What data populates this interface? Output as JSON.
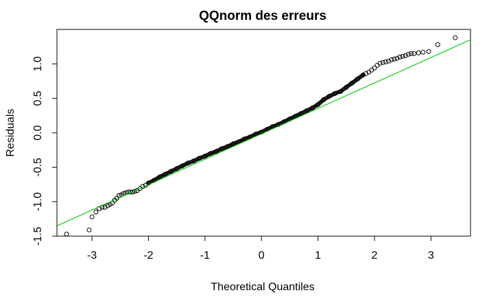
{
  "chart_data": {
    "type": "scatter",
    "title": "QQnorm des erreurs",
    "xlabel": "Theoretical Quantiles",
    "ylabel": "Residuals",
    "xlim": [
      -3.62,
      3.7
    ],
    "ylim": [
      -1.5,
      1.5
    ],
    "x_ticks": [
      -3,
      -2,
      -1,
      0,
      1,
      2,
      3
    ],
    "x_tick_labels": [
      "-3",
      "-2",
      "-1",
      "0",
      "1",
      "2",
      "3"
    ],
    "y_ticks": [
      -1.5,
      -1.0,
      -0.5,
      0.0,
      0.5,
      1.0
    ],
    "y_tick_labels": [
      "-1.5",
      "-1.0",
      "-0.5",
      "0.0",
      "0.5",
      "1.0"
    ],
    "grid": false,
    "reference_line": {
      "color": "#00cc00",
      "points": [
        [
          -3.62,
          -1.35
        ],
        [
          3.7,
          1.35
        ]
      ]
    },
    "series": [
      {
        "marker": "open-circle",
        "color": "#000000",
        "x": [
          -3.45,
          -3.05,
          -3.0,
          -2.93,
          -2.87,
          -2.82,
          -2.77,
          -2.72,
          -2.68,
          -2.64,
          -2.6,
          -2.56,
          -2.52,
          -2.48,
          -2.44,
          -2.4,
          -2.36,
          -2.32,
          -2.28,
          -2.24,
          -2.2,
          -2.15,
          -2.1,
          -2.05,
          -2.0,
          -1.9,
          -1.8,
          -1.7,
          -1.6,
          -1.5,
          -1.4,
          -1.3,
          -1.2,
          -1.1,
          -1.0,
          -0.9,
          -0.8,
          -0.7,
          -0.6,
          -0.5,
          -0.4,
          -0.3,
          -0.2,
          -0.1,
          0.0,
          0.1,
          0.2,
          0.3,
          0.4,
          0.5,
          0.6,
          0.7,
          0.8,
          0.9,
          1.0,
          1.1,
          1.2,
          1.3,
          1.4,
          1.5,
          1.6,
          1.7,
          1.8,
          1.85,
          1.9,
          1.95,
          2.0,
          2.05,
          2.1,
          2.15,
          2.2,
          2.25,
          2.3,
          2.35,
          2.4,
          2.45,
          2.5,
          2.55,
          2.6,
          2.65,
          2.7,
          2.78,
          2.86,
          2.96,
          3.12,
          3.43
        ],
        "y": [
          -1.47,
          -1.41,
          -1.22,
          -1.15,
          -1.1,
          -1.08,
          -1.08,
          -1.06,
          -1.04,
          -1.02,
          -0.98,
          -0.95,
          -0.91,
          -0.9,
          -0.88,
          -0.87,
          -0.86,
          -0.86,
          -0.86,
          -0.85,
          -0.84,
          -0.81,
          -0.78,
          -0.76,
          -0.73,
          -0.69,
          -0.64,
          -0.6,
          -0.56,
          -0.52,
          -0.48,
          -0.44,
          -0.41,
          -0.37,
          -0.34,
          -0.3,
          -0.27,
          -0.23,
          -0.2,
          -0.16,
          -0.13,
          -0.09,
          -0.06,
          -0.02,
          0.01,
          0.05,
          0.09,
          0.12,
          0.16,
          0.2,
          0.24,
          0.28,
          0.32,
          0.36,
          0.41,
          0.48,
          0.53,
          0.57,
          0.6,
          0.66,
          0.72,
          0.78,
          0.84,
          0.86,
          0.88,
          0.91,
          0.94,
          0.98,
          1.01,
          1.02,
          1.03,
          1.04,
          1.06,
          1.07,
          1.08,
          1.1,
          1.11,
          1.12,
          1.14,
          1.15,
          1.15,
          1.16,
          1.17,
          1.18,
          1.28,
          1.38
        ]
      }
    ]
  }
}
